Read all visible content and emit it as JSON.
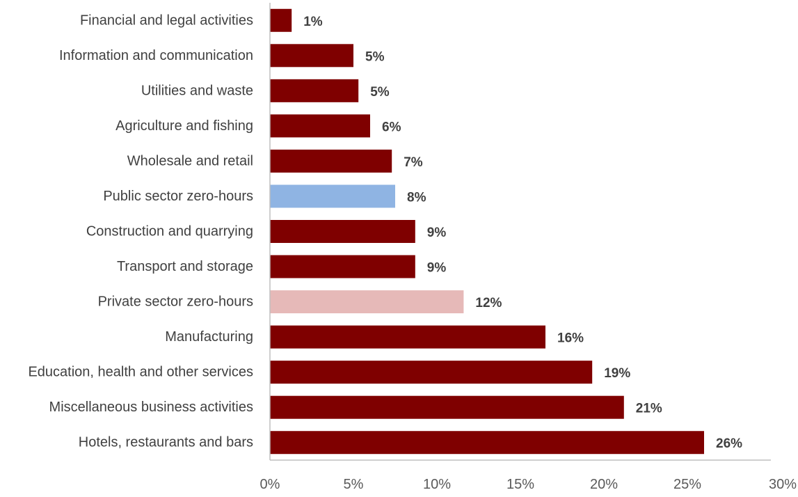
{
  "chart_data": {
    "type": "bar",
    "orientation": "horizontal",
    "categories": [
      "Financial and legal activities",
      "Information and communication",
      "Utilities and waste",
      "Agriculture and fishing",
      "Wholesale and retail",
      "Public sector zero-hours",
      "Construction and quarrying",
      "Transport and storage",
      "Private sector zero-hours",
      "Manufacturing",
      "Education, health and other services",
      "Miscellaneous business activities",
      "Hotels, restaurants and bars"
    ],
    "values": [
      1.3,
      5.0,
      5.3,
      6.0,
      7.3,
      7.5,
      8.7,
      8.7,
      11.6,
      16.5,
      19.3,
      21.2,
      26.0
    ],
    "value_labels": [
      "1%",
      "5%",
      "5%",
      "6%",
      "7%",
      "8%",
      "9%",
      "9%",
      "12%",
      "16%",
      "19%",
      "21%",
      "26%"
    ],
    "colors": [
      "#7f0000",
      "#7f0000",
      "#7f0000",
      "#7f0000",
      "#7f0000",
      "#8fb4e3",
      "#7f0000",
      "#7f0000",
      "#e6b9b8",
      "#7f0000",
      "#7f0000",
      "#7f0000",
      "#7f0000"
    ],
    "xlim": [
      0,
      30
    ],
    "x_ticks": [
      0,
      5,
      10,
      15,
      20,
      25,
      30
    ],
    "x_tick_labels": [
      "0%",
      "5%",
      "10%",
      "15%",
      "20%",
      "25%",
      "30%"
    ],
    "title": "",
    "xlabel": "",
    "ylabel": "",
    "grid": false,
    "legend": "none"
  }
}
